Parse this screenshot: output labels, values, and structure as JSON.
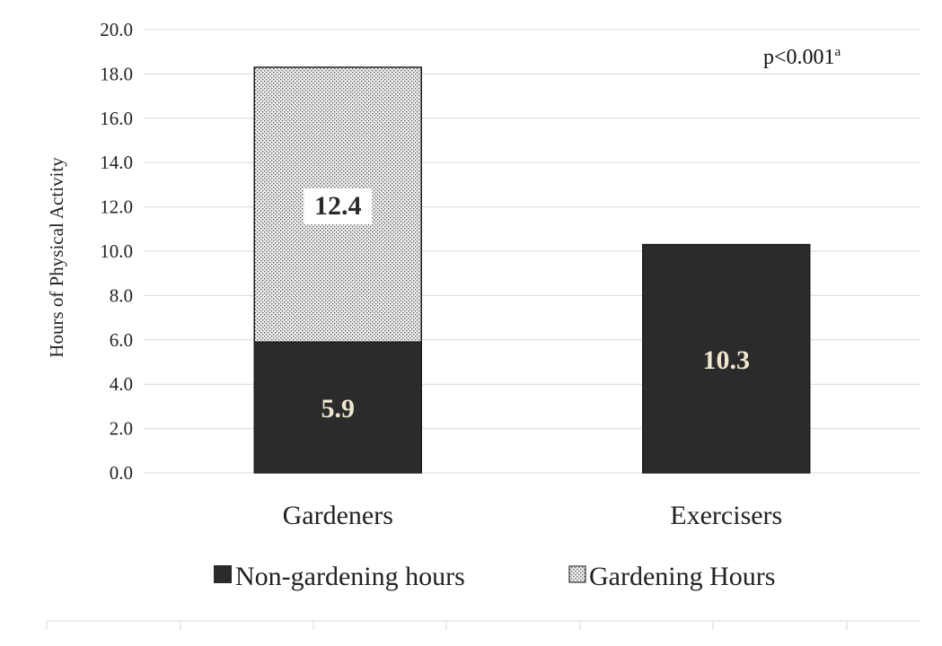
{
  "chart_data": {
    "type": "bar",
    "stacked": true,
    "categories": [
      "Gardeners",
      "Exercisers"
    ],
    "series": [
      {
        "name": "Non-gardening hours",
        "values": [
          5.9,
          10.3
        ],
        "color": "#2b2b2b",
        "pattern": "solid",
        "label_color": "#efe6cf"
      },
      {
        "name": "Gardening Hours",
        "values": [
          12.4,
          null
        ],
        "color": "#9a9a9a",
        "pattern": "dotted",
        "label_color": "#2b2b2b"
      }
    ],
    "title": "",
    "xlabel": "",
    "ylabel": "Hours of Physical Activity",
    "ylim": [
      0,
      20
    ],
    "yticks": [
      "0.0",
      "2.0",
      "4.0",
      "6.0",
      "8.0",
      "10.0",
      "12.0",
      "14.0",
      "16.0",
      "18.0",
      "20.0"
    ],
    "grid": true,
    "legend": "bottom",
    "annotation": {
      "text": "p<0.001",
      "superscript": "a"
    }
  }
}
